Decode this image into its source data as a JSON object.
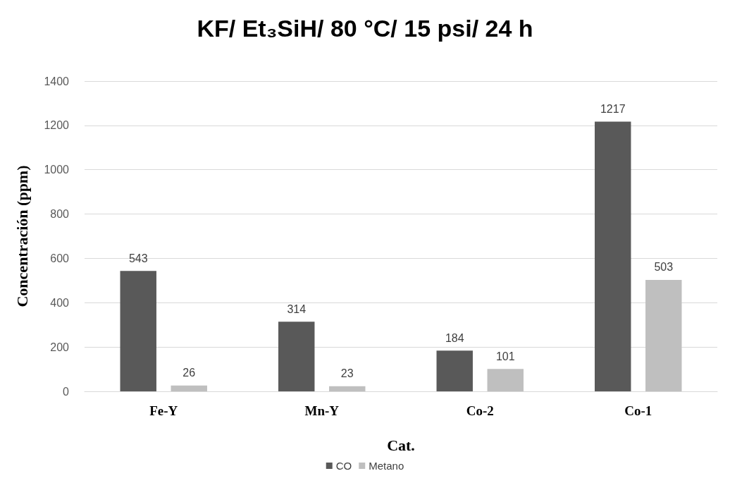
{
  "chart_data": {
    "type": "bar",
    "title": "KF/ Et₃SiH/ 80 °C/ 15 psi/ 24 h",
    "xlabel": "Cat.",
    "ylabel": "Concentración (ppm)",
    "categories": [
      "Fe-Y",
      "Mn-Y",
      "Co-2",
      "Co-1"
    ],
    "series": [
      {
        "name": "CO",
        "color": "#595959",
        "values": [
          543,
          314,
          184,
          1217
        ]
      },
      {
        "name": "Metano",
        "color": "#bfbfbf",
        "values": [
          26,
          23,
          101,
          503
        ]
      }
    ],
    "ylim": [
      0,
      1400
    ],
    "yticks": [
      0,
      200,
      400,
      600,
      800,
      1000,
      1200,
      1400
    ],
    "grid": "y",
    "legend": "bottom",
    "data_labels": true
  }
}
